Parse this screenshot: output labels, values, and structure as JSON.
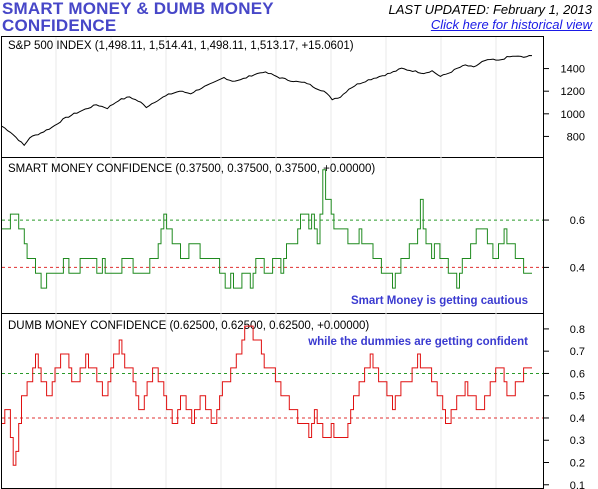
{
  "header": {
    "title": "SMART MONEY & DUMB MONEY CONFIDENCE",
    "last_updated": "LAST UPDATED:  February 1, 2013",
    "history_link": "Click here for historical view"
  },
  "colors": {
    "title": "#4747c8",
    "link": "#1a1ae6",
    "spx_line": "#000000",
    "smart_line": "#1f8a1f",
    "dumb_line": "#e01010",
    "ref_high": "#2a9a2a",
    "ref_low": "#e03030",
    "annotation": "#3a3ad0"
  },
  "chart_data": [
    {
      "type": "line",
      "label": "S&P 500 INDEX (1,498.11, 1,514.41, 1,498.11, 1,513.17, +15.0601)",
      "yticks": [
        800,
        1000,
        1200,
        1400
      ],
      "ylim": [
        680,
        1520
      ],
      "grid": false,
      "series": [
        {
          "points": [
            [
              0,
              890
            ],
            [
              3,
              840
            ],
            [
              6,
              770
            ],
            [
              8,
              720
            ],
            [
              10,
              790
            ],
            [
              14,
              830
            ],
            [
              18,
              880
            ],
            [
              22,
              950
            ],
            [
              26,
              1000
            ],
            [
              30,
              1040
            ],
            [
              34,
              1080
            ],
            [
              38,
              1050
            ],
            [
              42,
              1120
            ],
            [
              46,
              1150
            ],
            [
              50,
              1100
            ],
            [
              52,
              1060
            ],
            [
              56,
              1120
            ],
            [
              60,
              1170
            ],
            [
              64,
              1200
            ],
            [
              68,
              1180
            ],
            [
              72,
              1230
            ],
            [
              76,
              1270
            ],
            [
              80,
              1320
            ],
            [
              83,
              1290
            ],
            [
              86,
              1300
            ],
            [
              90,
              1340
            ],
            [
              94,
              1370
            ],
            [
              97,
              1350
            ],
            [
              100,
              1320
            ],
            [
              103,
              1300
            ],
            [
              107,
              1280
            ],
            [
              110,
              1270
            ],
            [
              113,
              1230
            ],
            [
              116,
              1200
            ],
            [
              119,
              1130
            ],
            [
              122,
              1150
            ],
            [
              125,
              1220
            ],
            [
              128,
              1260
            ],
            [
              132,
              1300
            ],
            [
              136,
              1330
            ],
            [
              140,
              1360
            ],
            [
              144,
              1400
            ],
            [
              148,
              1380
            ],
            [
              152,
              1360
            ],
            [
              155,
              1380
            ],
            [
              158,
              1330
            ],
            [
              161,
              1360
            ],
            [
              164,
              1400
            ],
            [
              167,
              1430
            ],
            [
              170,
              1410
            ],
            [
              173,
              1460
            ],
            [
              176,
              1480
            ],
            [
              179,
              1470
            ],
            [
              182,
              1500
            ],
            [
              185,
              1510
            ],
            [
              188,
              1500
            ],
            [
              191,
              1515
            ]
          ]
        }
      ]
    },
    {
      "type": "line",
      "label": "SMART MONEY CONFIDENCE (0.37500, 0.37500, 0.37500, +0.00000)",
      "yticks": [
        0.4,
        0.6
      ],
      "ylim": [
        0.22,
        0.82
      ],
      "reference_lines": [
        0.6,
        0.4
      ],
      "annotation": "Smart Money is getting cautious",
      "grid": false,
      "series": [
        {
          "points": [
            [
              0,
              0.55
            ],
            [
              2,
              0.6
            ],
            [
              4,
              0.63
            ],
            [
              6,
              0.58
            ],
            [
              8,
              0.5
            ],
            [
              10,
              0.44
            ],
            [
              12,
              0.4
            ],
            [
              14,
              0.32
            ],
            [
              16,
              0.38
            ],
            [
              18,
              0.4
            ],
            [
              20,
              0.38
            ],
            [
              22,
              0.42
            ],
            [
              24,
              0.4
            ],
            [
              26,
              0.38
            ],
            [
              28,
              0.42
            ],
            [
              30,
              0.46
            ],
            [
              32,
              0.44
            ],
            [
              34,
              0.4
            ],
            [
              36,
              0.42
            ],
            [
              38,
              0.4
            ],
            [
              40,
              0.36
            ],
            [
              42,
              0.4
            ],
            [
              44,
              0.46
            ],
            [
              46,
              0.42
            ],
            [
              48,
              0.4
            ],
            [
              50,
              0.34
            ],
            [
              52,
              0.4
            ],
            [
              54,
              0.44
            ],
            [
              56,
              0.52
            ],
            [
              58,
              0.6
            ],
            [
              60,
              0.55
            ],
            [
              62,
              0.5
            ],
            [
              64,
              0.44
            ],
            [
              66,
              0.46
            ],
            [
              68,
              0.5
            ],
            [
              70,
              0.48
            ],
            [
              72,
              0.46
            ],
            [
              74,
              0.4
            ],
            [
              76,
              0.42
            ],
            [
              78,
              0.38
            ],
            [
              80,
              0.34
            ],
            [
              82,
              0.36
            ],
            [
              84,
              0.3
            ],
            [
              86,
              0.35
            ],
            [
              88,
              0.36
            ],
            [
              89,
              0.27
            ],
            [
              90,
              0.4
            ],
            [
              92,
              0.46
            ],
            [
              94,
              0.4
            ],
            [
              96,
              0.38
            ],
            [
              98,
              0.42
            ],
            [
              100,
              0.4
            ],
            [
              102,
              0.46
            ],
            [
              104,
              0.5
            ],
            [
              106,
              0.56
            ],
            [
              108,
              0.62
            ],
            [
              110,
              0.6
            ],
            [
              112,
              0.58
            ],
            [
              113,
              0.52
            ],
            [
              114,
              0.66
            ],
            [
              115,
              0.8
            ],
            [
              116,
              0.7
            ],
            [
              118,
              0.62
            ],
            [
              120,
              0.58
            ],
            [
              122,
              0.55
            ],
            [
              124,
              0.52
            ],
            [
              126,
              0.5
            ],
            [
              128,
              0.54
            ],
            [
              130,
              0.52
            ],
            [
              132,
              0.5
            ],
            [
              134,
              0.44
            ],
            [
              136,
              0.4
            ],
            [
              138,
              0.36
            ],
            [
              140,
              0.32
            ],
            [
              142,
              0.38
            ],
            [
              144,
              0.44
            ],
            [
              146,
              0.48
            ],
            [
              148,
              0.5
            ],
            [
              149,
              0.58
            ],
            [
              150,
              0.68
            ],
            [
              151,
              0.6
            ],
            [
              152,
              0.54
            ],
            [
              154,
              0.48
            ],
            [
              156,
              0.5
            ],
            [
              158,
              0.44
            ],
            [
              160,
              0.4
            ],
            [
              162,
              0.36
            ],
            [
              163,
              0.3
            ],
            [
              164,
              0.38
            ],
            [
              166,
              0.44
            ],
            [
              168,
              0.48
            ],
            [
              170,
              0.52
            ],
            [
              172,
              0.56
            ],
            [
              174,
              0.5
            ],
            [
              175,
              0.46
            ],
            [
              176,
              0.42
            ],
            [
              178,
              0.48
            ],
            [
              180,
              0.54
            ],
            [
              182,
              0.5
            ],
            [
              184,
              0.44
            ],
            [
              186,
              0.4
            ],
            [
              188,
              0.36
            ],
            [
              190,
              0.38
            ]
          ]
        }
      ]
    },
    {
      "type": "line",
      "label": "DUMB MONEY CONFIDENCE (0.62500, 0.62500, 0.62500, +0.00000)",
      "yticks": [
        0.1,
        0.2,
        0.3,
        0.4,
        0.5,
        0.6,
        0.7,
        0.8
      ],
      "ylim": [
        0.09,
        0.84
      ],
      "reference_lines": [
        0.6,
        0.4
      ],
      "annotation": "while the dummies are getting confident",
      "grid": false,
      "series": [
        {
          "points": [
            [
              0,
              0.4
            ],
            [
              2,
              0.42
            ],
            [
              3,
              0.3
            ],
            [
              4,
              0.2
            ],
            [
              5,
              0.26
            ],
            [
              6,
              0.4
            ],
            [
              8,
              0.52
            ],
            [
              10,
              0.6
            ],
            [
              12,
              0.66
            ],
            [
              14,
              0.58
            ],
            [
              16,
              0.5
            ],
            [
              18,
              0.56
            ],
            [
              20,
              0.64
            ],
            [
              22,
              0.7
            ],
            [
              24,
              0.62
            ],
            [
              26,
              0.56
            ],
            [
              28,
              0.62
            ],
            [
              30,
              0.68
            ],
            [
              32,
              0.64
            ],
            [
              34,
              0.58
            ],
            [
              36,
              0.5
            ],
            [
              38,
              0.56
            ],
            [
              40,
              0.68
            ],
            [
              42,
              0.74
            ],
            [
              44,
              0.66
            ],
            [
              46,
              0.6
            ],
            [
              48,
              0.5
            ],
            [
              50,
              0.44
            ],
            [
              52,
              0.56
            ],
            [
              54,
              0.64
            ],
            [
              56,
              0.58
            ],
            [
              58,
              0.5
            ],
            [
              60,
              0.42
            ],
            [
              62,
              0.38
            ],
            [
              64,
              0.48
            ],
            [
              66,
              0.44
            ],
            [
              68,
              0.4
            ],
            [
              70,
              0.46
            ],
            [
              72,
              0.52
            ],
            [
              74,
              0.4
            ],
            [
              76,
              0.36
            ],
            [
              78,
              0.5
            ],
            [
              80,
              0.58
            ],
            [
              82,
              0.62
            ],
            [
              84,
              0.68
            ],
            [
              86,
              0.76
            ],
            [
              88,
              0.82
            ],
            [
              90,
              0.78
            ],
            [
              92,
              0.72
            ],
            [
              94,
              0.66
            ],
            [
              96,
              0.62
            ],
            [
              98,
              0.58
            ],
            [
              100,
              0.52
            ],
            [
              102,
              0.46
            ],
            [
              104,
              0.44
            ],
            [
              106,
              0.4
            ],
            [
              108,
              0.36
            ],
            [
              110,
              0.34
            ],
            [
              112,
              0.44
            ],
            [
              114,
              0.38
            ],
            [
              116,
              0.3
            ],
            [
              118,
              0.36
            ],
            [
              120,
              0.34
            ],
            [
              122,
              0.3
            ],
            [
              124,
              0.38
            ],
            [
              126,
              0.48
            ],
            [
              128,
              0.58
            ],
            [
              130,
              0.62
            ],
            [
              132,
              0.66
            ],
            [
              134,
              0.6
            ],
            [
              136,
              0.56
            ],
            [
              138,
              0.52
            ],
            [
              140,
              0.46
            ],
            [
              142,
              0.5
            ],
            [
              144,
              0.56
            ],
            [
              146,
              0.6
            ],
            [
              148,
              0.64
            ],
            [
              150,
              0.66
            ],
            [
              152,
              0.62
            ],
            [
              154,
              0.58
            ],
            [
              156,
              0.5
            ],
            [
              158,
              0.46
            ],
            [
              159,
              0.34
            ],
            [
              160,
              0.4
            ],
            [
              162,
              0.48
            ],
            [
              164,
              0.5
            ],
            [
              166,
              0.54
            ],
            [
              168,
              0.5
            ],
            [
              170,
              0.44
            ],
            [
              172,
              0.46
            ],
            [
              174,
              0.52
            ],
            [
              176,
              0.58
            ],
            [
              178,
              0.64
            ],
            [
              180,
              0.58
            ],
            [
              182,
              0.5
            ],
            [
              184,
              0.54
            ],
            [
              186,
              0.58
            ],
            [
              188,
              0.6
            ],
            [
              190,
              0.62
            ]
          ]
        }
      ]
    }
  ]
}
